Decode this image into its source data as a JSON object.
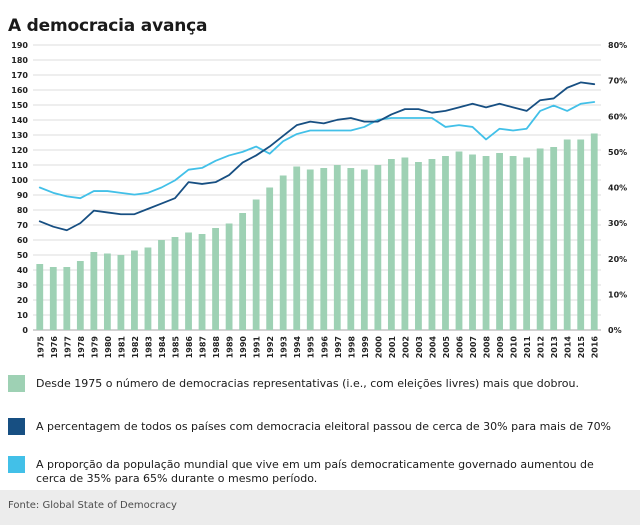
{
  "title": "A democracia avança",
  "source": "Fonte: Global State of Democracy",
  "legend": [
    {
      "color": "#9ed1b4",
      "text": "Desde 1975 o número de democracias representativas (i.e., com eleições livres) mais que dobrou."
    },
    {
      "color": "#174f82",
      "text": "A percentagem de todos os países com democracia eleitoral passou de cerca de 30% para mais de 70%"
    },
    {
      "color": "#42c0e8",
      "text": "A proporção da população mundial que vive em um país democraticamente governado aumentou de cerca de 35% para 65% durante o mesmo período."
    }
  ],
  "chart_data": {
    "type": "bar+line",
    "title": "A democracia avança",
    "x": [
      1975,
      1976,
      1977,
      1978,
      1979,
      1980,
      1981,
      1982,
      1983,
      1984,
      1985,
      1986,
      1987,
      1988,
      1989,
      1990,
      1991,
      1992,
      1993,
      1994,
      1995,
      1996,
      1997,
      1998,
      1999,
      2000,
      2001,
      2002,
      2003,
      2004,
      2005,
      2006,
      2007,
      2008,
      2009,
      2010,
      2011,
      2012,
      2013,
      2014,
      2015,
      2016
    ],
    "left_axis": {
      "min": 0,
      "max": 190,
      "step": 10,
      "suffix": ""
    },
    "right_axis": {
      "min": 0,
      "max": 80,
      "step": 10,
      "suffix": "%"
    },
    "grid": true,
    "legend_position": "bottom",
    "series": [
      {
        "name": "Número de democracias representativas",
        "type": "bar",
        "axis": "left",
        "color": "#9ed1b4",
        "values": [
          44,
          42,
          42,
          46,
          52,
          51,
          50,
          53,
          55,
          60,
          62,
          65,
          64,
          68,
          71,
          78,
          87,
          95,
          103,
          109,
          107,
          108,
          110,
          108,
          107,
          110,
          114,
          115,
          112,
          114,
          116,
          119,
          117,
          116,
          118,
          116,
          115,
          121,
          122,
          127,
          127,
          131
        ]
      },
      {
        "name": "Percentagem de países com democracia eleitoral",
        "type": "line",
        "axis": "right",
        "color": "#174f82",
        "values": [
          30.5,
          29,
          28,
          30,
          33.5,
          33,
          32.5,
          32.5,
          34,
          35.5,
          37,
          41.5,
          41,
          41.5,
          43.5,
          47,
          49,
          51.5,
          54.5,
          57.5,
          58.5,
          58,
          59,
          59.5,
          58.5,
          58.5,
          60.5,
          62,
          62,
          61,
          61.5,
          62.5,
          63.5,
          62.5,
          63.5,
          62.5,
          61.5,
          64.5,
          65,
          68,
          69.5,
          69
        ]
      },
      {
        "name": "Proporção da população mundial em países democráticos",
        "type": "line",
        "axis": "right",
        "color": "#42c0e8",
        "values": [
          40,
          38.5,
          37.5,
          37,
          39,
          39,
          38.5,
          38,
          38.5,
          40,
          42,
          45,
          45.5,
          47.5,
          49,
          50,
          51.5,
          49.5,
          53,
          55,
          56,
          56,
          56,
          56,
          57,
          59,
          59.5,
          59.5,
          59.5,
          59.5,
          57,
          57.5,
          57,
          53.5,
          56.5,
          56,
          56.5,
          61.5,
          63,
          61.5,
          63.5,
          64
        ]
      }
    ]
  }
}
